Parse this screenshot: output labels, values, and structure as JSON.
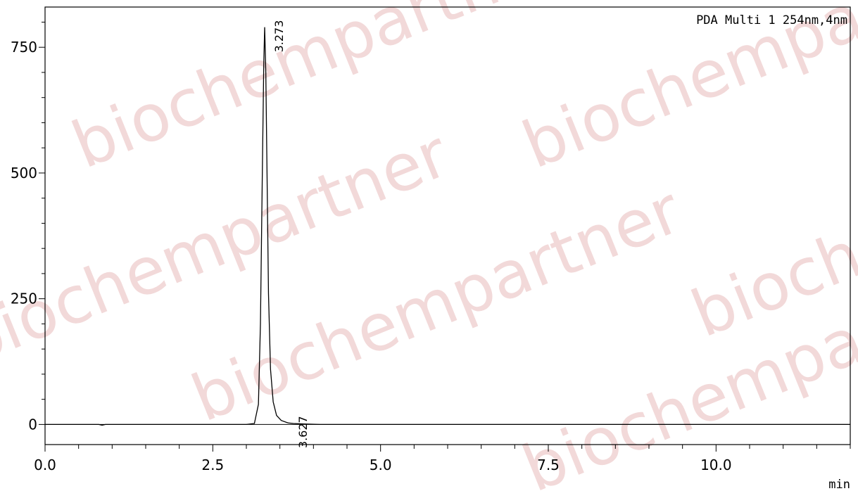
{
  "chart_data": {
    "type": "line",
    "title": "",
    "channel_label": "PDA Multi 1 254nm,4nm",
    "xlabel": "min",
    "ylabel": "",
    "xlim": [
      0.0,
      12.0
    ],
    "ylim": [
      -40,
      830
    ],
    "x_ticks": [
      {
        "value": 0.0,
        "label": "0.0"
      },
      {
        "value": 2.5,
        "label": "2.5"
      },
      {
        "value": 5.0,
        "label": "5.0"
      },
      {
        "value": 7.5,
        "label": "7.5"
      },
      {
        "value": 10.0,
        "label": "10.0"
      }
    ],
    "y_ticks": [
      {
        "value": 0,
        "label": "0"
      },
      {
        "value": 250,
        "label": "250"
      },
      {
        "value": 500,
        "label": "500"
      },
      {
        "value": 750,
        "label": "750"
      }
    ],
    "grid": false,
    "series": [
      {
        "color": "#000000",
        "x": [
          0.0,
          0.5,
          0.8,
          0.85,
          0.9,
          1.5,
          2.5,
          3.0,
          3.12,
          3.18,
          3.21,
          3.24,
          3.26,
          3.273,
          3.29,
          3.31,
          3.33,
          3.36,
          3.4,
          3.45,
          3.52,
          3.6,
          3.627,
          3.7,
          3.85,
          4.1,
          5.0,
          7.5,
          10.0,
          12.0
        ],
        "y": [
          0,
          0,
          0,
          -1.5,
          0,
          0,
          0,
          0,
          2,
          40,
          200,
          520,
          720,
          790,
          700,
          480,
          260,
          110,
          45,
          18,
          8,
          4,
          3,
          2,
          1,
          0,
          0,
          0,
          0,
          0
        ]
      }
    ],
    "peaks": [
      {
        "x": 3.273,
        "y": 790,
        "label": "3.273"
      },
      {
        "x": 3.627,
        "y": 3,
        "label": "3.627"
      }
    ]
  },
  "watermark": {
    "text": "biochempartner",
    "color": "#f2d9d9"
  }
}
